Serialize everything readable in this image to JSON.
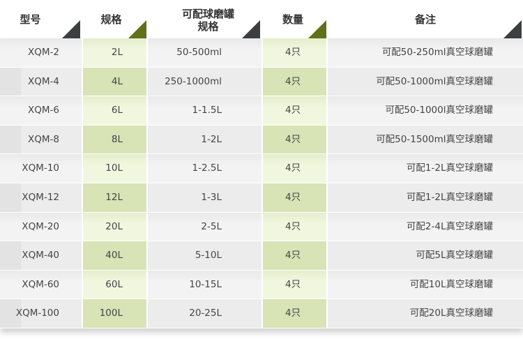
{
  "header": {
    "col1": "型号",
    "col2": "规格",
    "col3_line1": "可配球磨罐",
    "col3_line2": "规格",
    "col4": "数量",
    "col5": "备注"
  },
  "rows": [
    {
      "model": "XQM-2",
      "spec": "2L",
      "jar": "50-500ml",
      "qty": "4只",
      "note": "可配50-250ml真空球磨罐"
    },
    {
      "model": "XQM-4",
      "spec": "4L",
      "jar": "250-1000ml",
      "qty": "4只",
      "note": "可配50-1000ml真空球磨罐"
    },
    {
      "model": "XQM-6",
      "spec": "6L",
      "jar": "1-1.5L",
      "qty": "4只",
      "note": "可配50-1000l真空球磨罐"
    },
    {
      "model": "XQM-8",
      "spec": "8L",
      "jar": "1-2L",
      "qty": "4只",
      "note": "可配50-1500ml真空球磨罐"
    },
    {
      "model": "XQM-10",
      "spec": "10L",
      "jar": "1-2.5L",
      "qty": "4只",
      "note": "可配1-2L真空球磨罐"
    },
    {
      "model": "XQM-12",
      "spec": "12L",
      "jar": "1-3L",
      "qty": "4只",
      "note": "可配1-2L真空球磨罐"
    },
    {
      "model": "XQM-20",
      "spec": "20L",
      "jar": "2-5L",
      "qty": "4只",
      "note": "可配2-4L真空球磨罐"
    },
    {
      "model": "XQM-40",
      "spec": "40L",
      "jar": "5-10L",
      "qty": "4只",
      "note": "可配5L真空球磨罐"
    },
    {
      "model": "XQM-60",
      "spec": "60L",
      "jar": "10-15L",
      "qty": "4只",
      "note": "可配10L真空球磨罐"
    },
    {
      "model": "XQM-100",
      "spec": "100L",
      "jar": "20-25L",
      "qty": "4只",
      "note": "可配20L真空球磨罐"
    }
  ],
  "colors": {
    "green_light": "#eef5d9",
    "green_dark": "#d8e3b6",
    "triangle_dark": "#3b3f40",
    "triangle_green": "#5e7219"
  }
}
